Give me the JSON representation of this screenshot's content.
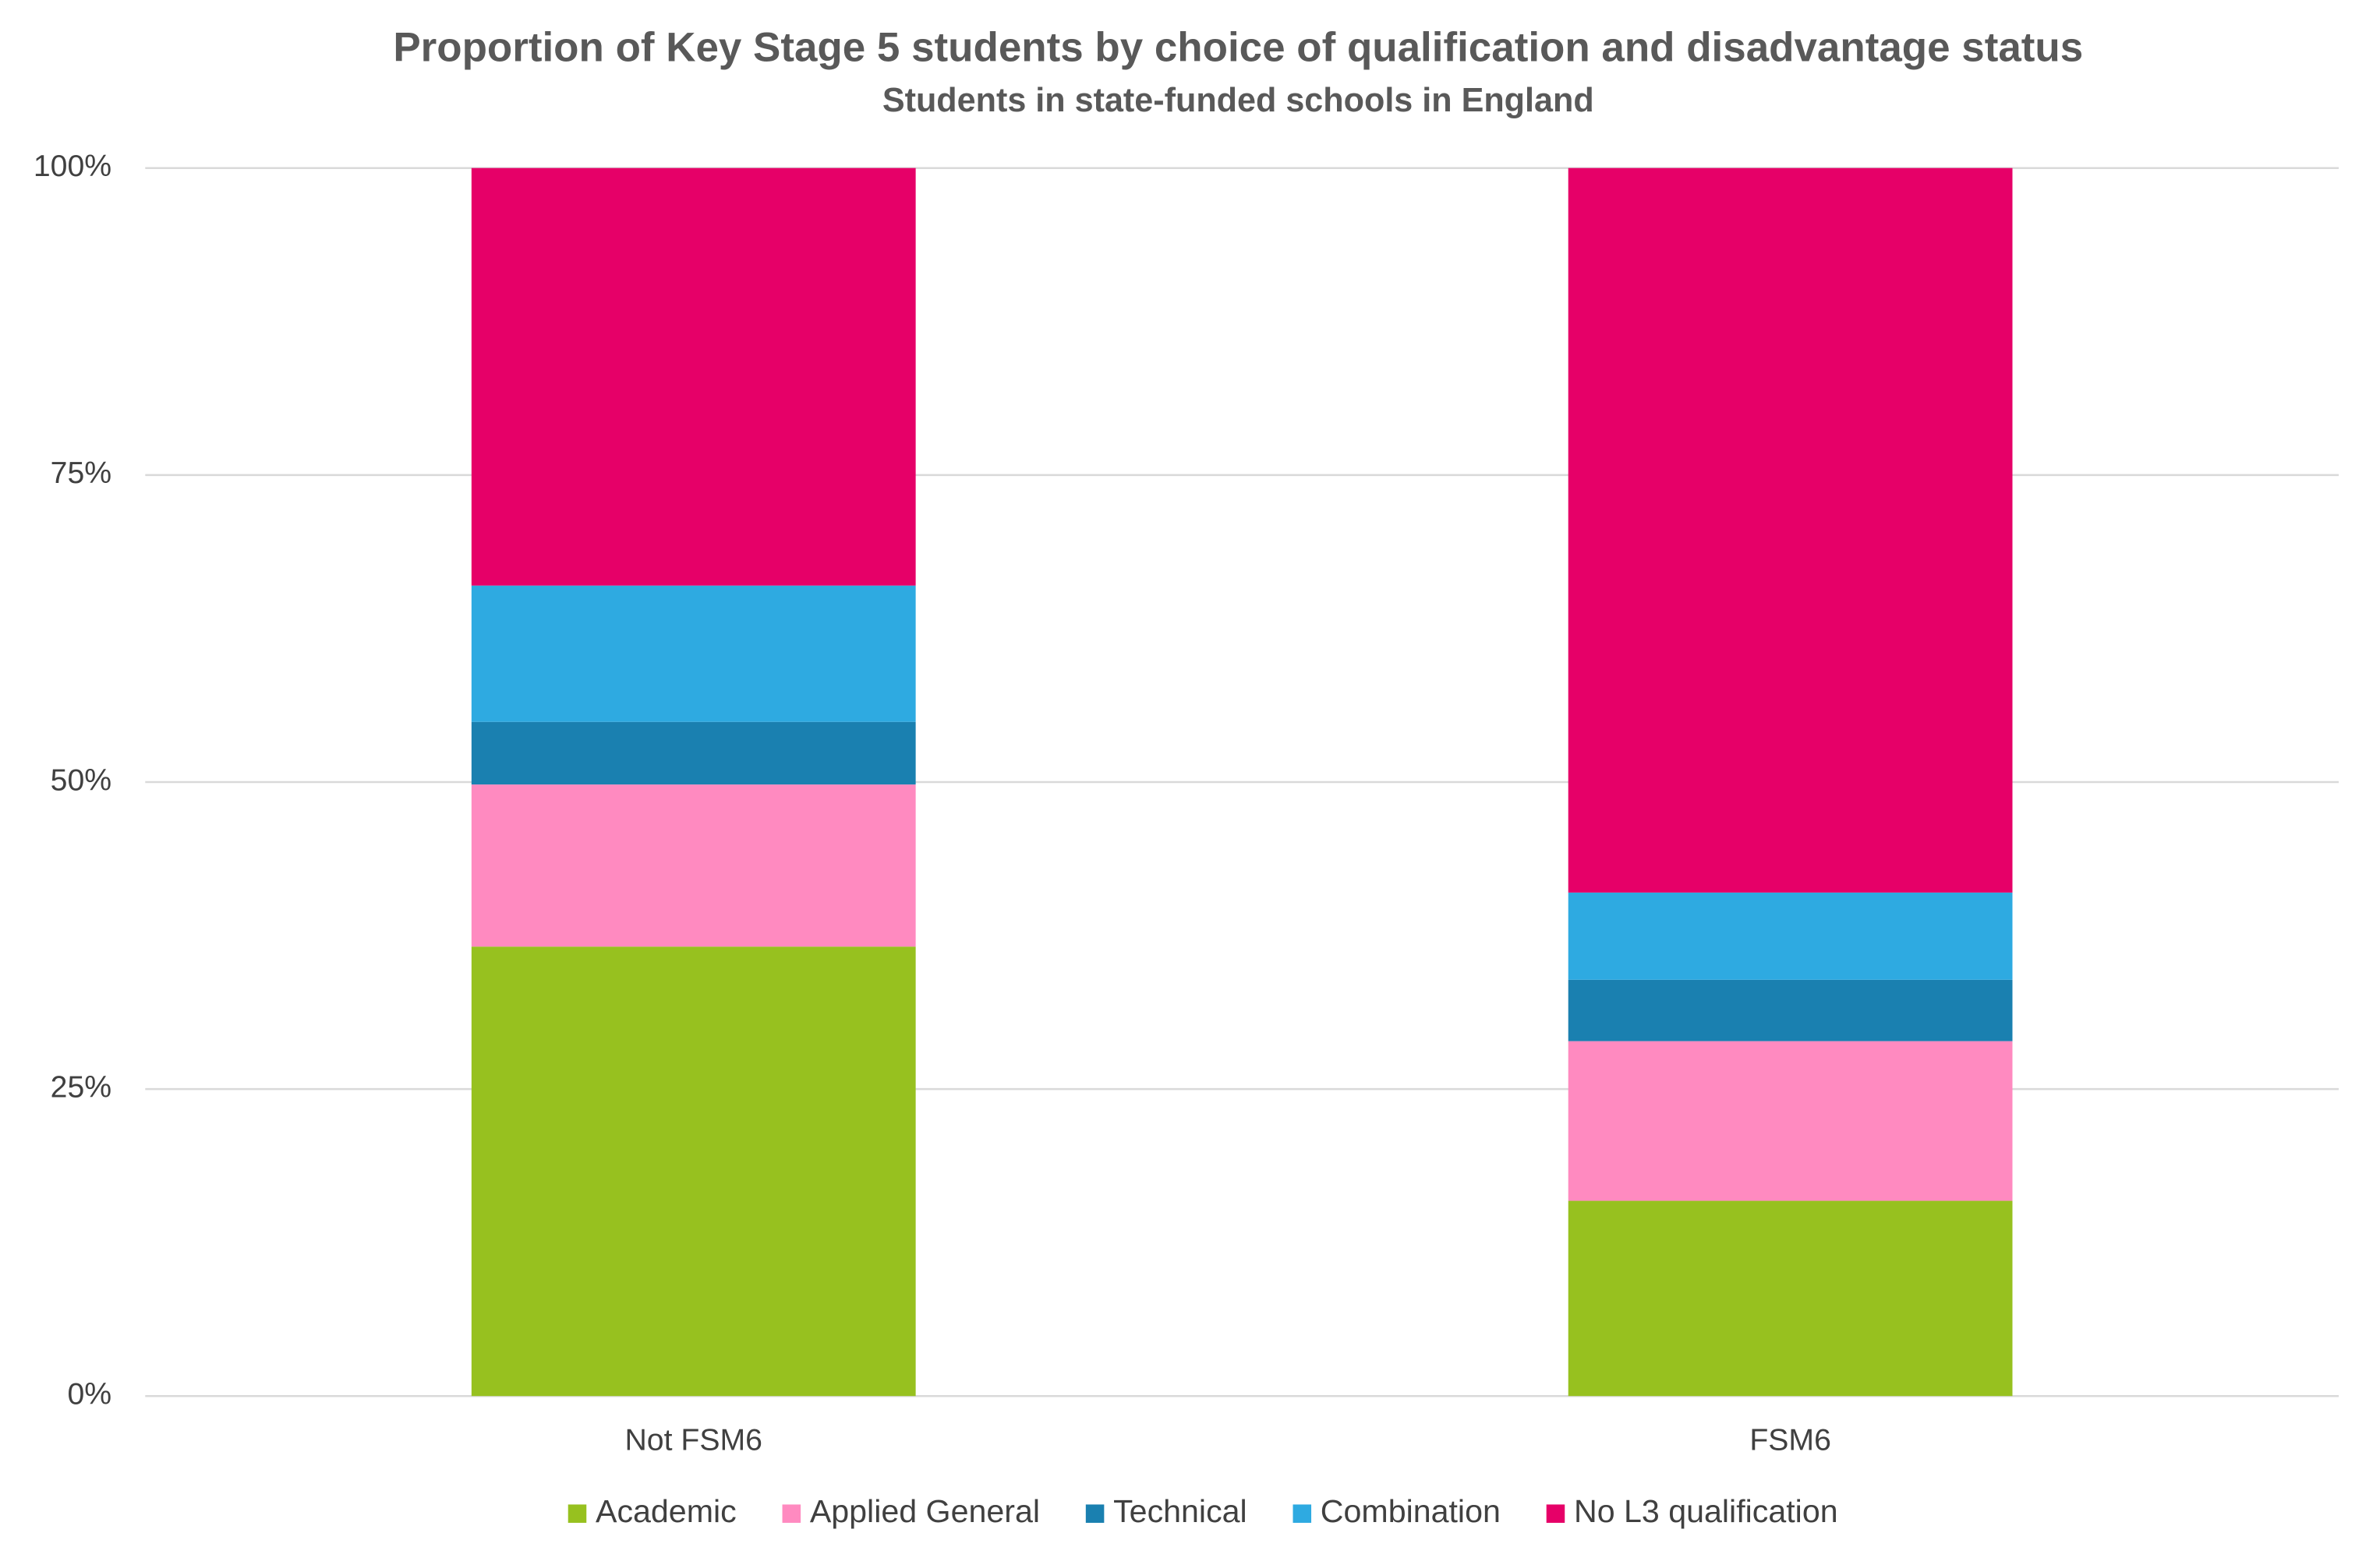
{
  "chart_data": {
    "type": "stacked-bar",
    "title": "Proportion of Key Stage 5 students by choice of qualification and disadvantage status",
    "subtitle": "Students in state-funded schools in England",
    "categories": [
      "Not FSM6",
      "FSM6"
    ],
    "series": [
      {
        "name": "Academic",
        "color": "#97c11f",
        "values": [
          36.6,
          15.9
        ]
      },
      {
        "name": "Applied General",
        "color": "#ff8ac0",
        "values": [
          13.2,
          13.0
        ]
      },
      {
        "name": "Technical",
        "color": "#1a80b0",
        "values": [
          5.1,
          5.0
        ]
      },
      {
        "name": "Combination",
        "color": "#2eaae1",
        "values": [
          11.1,
          7.1
        ]
      },
      {
        "name": "No L3 qualification",
        "color": "#e60068",
        "values": [
          34.0,
          59.0
        ]
      }
    ],
    "ylim": [
      0,
      100
    ],
    "yticks": [
      {
        "value": 0,
        "label": "0%"
      },
      {
        "value": 25,
        "label": "25%"
      },
      {
        "value": 50,
        "label": "50%"
      },
      {
        "value": 75,
        "label": "75%"
      },
      {
        "value": 100,
        "label": "100%"
      }
    ],
    "grid": true,
    "legend": "bottom"
  }
}
